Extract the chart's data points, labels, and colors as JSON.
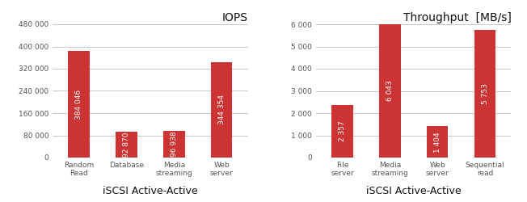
{
  "left": {
    "title": "IOPS",
    "xlabel": "iSCSI Active-Active",
    "categories": [
      "Random\nRead",
      "Database",
      "Media\nstreaming",
      "Web\nserver"
    ],
    "values": [
      384046,
      92870,
      96938,
      344354
    ],
    "labels": [
      "384 046",
      "92 870",
      "96 938",
      "344 354"
    ],
    "ylim": [
      0,
      480000
    ],
    "yticks": [
      0,
      80000,
      160000,
      240000,
      320000,
      400000,
      480000
    ],
    "yticklabels": [
      "0",
      "80 000",
      "160 000",
      "240 000",
      "320 000",
      "400 000",
      "480 000"
    ],
    "bar_color": "#cc3333"
  },
  "right": {
    "title": "Throughput  [MB/s]",
    "xlabel": "iSCSI Active-Active",
    "categories": [
      "File\nserver",
      "Media\nstreaming",
      "Web\nserver",
      "Sequential\nread"
    ],
    "values": [
      2357,
      6043,
      1404,
      5753
    ],
    "labels": [
      "2 357",
      "6 043",
      "1 404",
      "5 753"
    ],
    "ylim": [
      0,
      6000
    ],
    "yticks": [
      0,
      1000,
      2000,
      3000,
      4000,
      5000,
      6000
    ],
    "yticklabels": [
      "0",
      "1 000",
      "2 000",
      "3 000",
      "4 000",
      "5 000",
      "6 000"
    ],
    "bar_color": "#cc3333"
  },
  "bg_color": "#ffffff",
  "grid_color": "#c8c8c8",
  "label_color": "#ffffff",
  "label_fontsize": 6.5,
  "tick_fontsize": 6.5,
  "title_fontsize": 10,
  "xlabel_fontsize": 9,
  "bar_width": 0.45
}
